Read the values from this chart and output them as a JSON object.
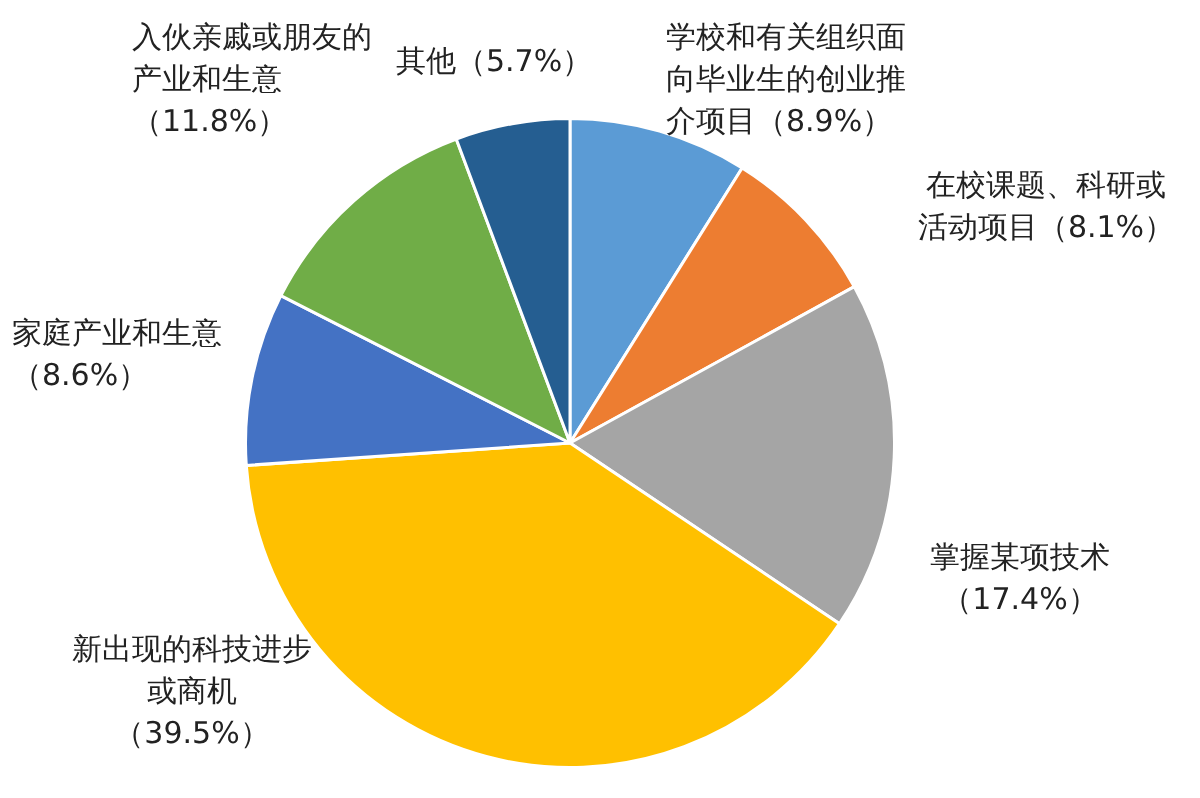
{
  "chart_data": {
    "type": "pie",
    "categories": [
      "学校和有关组织面向毕业生的创业推介项目",
      "在校课题、科研或活动项目",
      "掌握某项技术",
      "新出现的科技进步或商机",
      "家庭产业和生意",
      "入伙亲戚或朋友的产业和生意",
      "其他"
    ],
    "values": [
      8.9,
      8.1,
      17.4,
      39.5,
      8.6,
      11.8,
      5.7
    ],
    "value_labels": [
      "（8.9%）",
      "（8.1%）",
      "（17.4%）",
      "（39.5%）",
      "（8.6%）",
      "（11.8%）",
      "（5.7%）"
    ],
    "colors": [
      "#5b9bd5",
      "#ed7d31",
      "#a5a5a5",
      "#ffc000",
      "#4472c4",
      "#70ad47",
      "#255e91"
    ],
    "legend": false
  }
}
